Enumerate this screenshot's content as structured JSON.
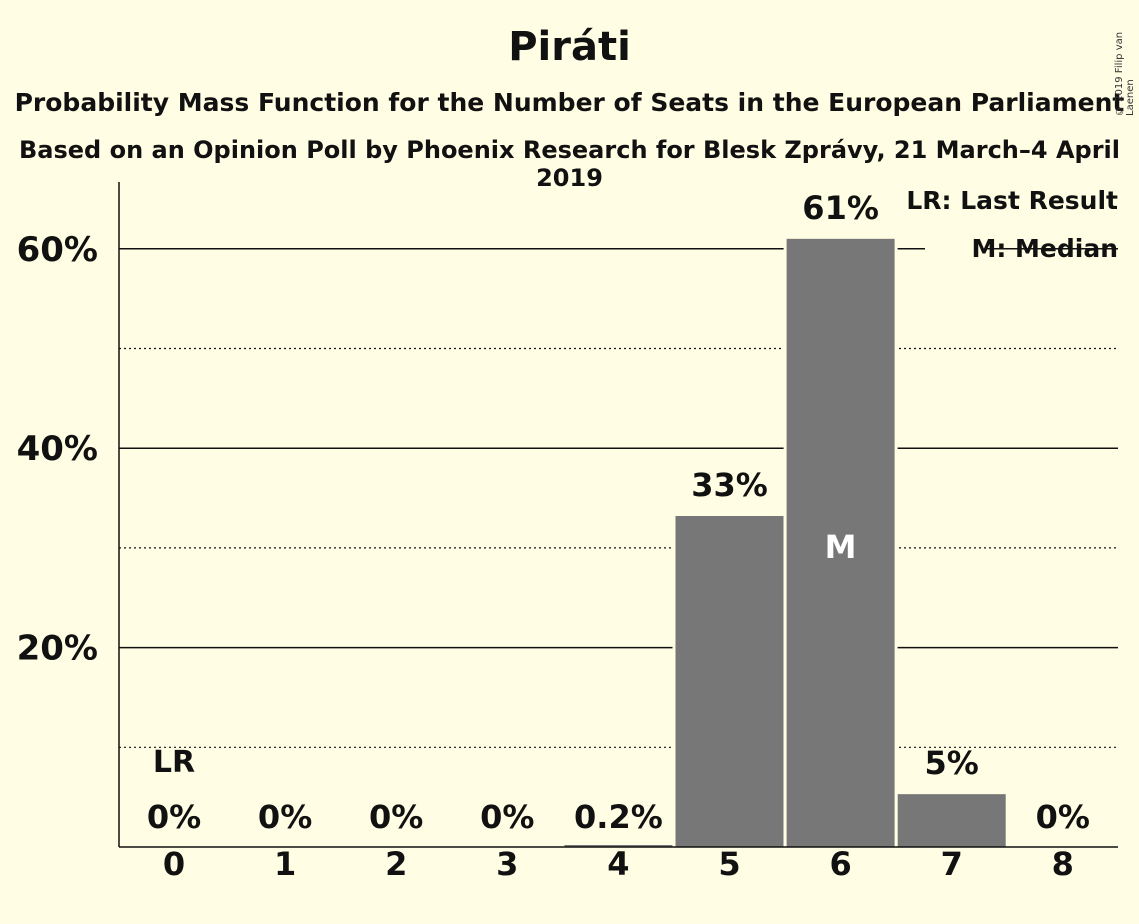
{
  "title": "Piráti",
  "subtitle": "Probability Mass Function for the Number of Seats in the European Parliament",
  "subtitle2": "Based on an Opinion Poll by Phoenix Research for Blesk Zprávy, 21 March–4 April 2019",
  "copyright": "© 2019 Filip van Laenen",
  "legend": {
    "last_result": "LR: Last Result",
    "median": "M: Median"
  },
  "colors": {
    "background": "#FFFDE3",
    "bar": "#777777",
    "text": "#111111"
  },
  "chart_data": {
    "type": "bar",
    "categories": [
      "0",
      "1",
      "2",
      "3",
      "4",
      "5",
      "6",
      "7",
      "8"
    ],
    "values": [
      0,
      0,
      0,
      0,
      0.2,
      33.2,
      61,
      5.3,
      0
    ],
    "labels": [
      "0%",
      "0%",
      "0%",
      "0%",
      "0.2%",
      "33%",
      "61%",
      "5%",
      "0%"
    ],
    "ylim": [
      0,
      66
    ],
    "yticks": [
      20,
      40,
      60
    ],
    "ytick_labels": [
      "20%",
      "40%",
      "60%"
    ],
    "minor_gridlines": [
      10,
      30,
      50
    ],
    "last_result_category": "0",
    "last_result_marker": "LR",
    "median_category": "6",
    "median_marker": "M",
    "legend_position": "top-right"
  }
}
